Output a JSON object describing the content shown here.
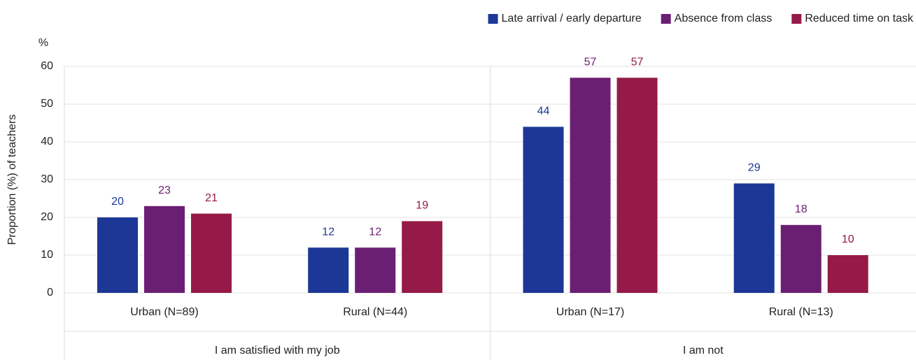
{
  "chart_data": {
    "type": "bar",
    "y_unit": "%",
    "ylabel": "Proportion (%) of teachers",
    "groups": [
      {
        "name": "I am satisfied with my job",
        "categories": [
          "Urban (N=89)",
          "Rural (N=44)"
        ]
      },
      {
        "name": "I am not",
        "categories": [
          "Urban (N=17)",
          "Rural (N=13)"
        ]
      }
    ],
    "series": [
      {
        "name": "Late arrival / early departure",
        "color": "#1c3795",
        "values": [
          20,
          12,
          44,
          29
        ]
      },
      {
        "name": "Absence from class",
        "color": "#6b1f73",
        "values": [
          23,
          12,
          57,
          18
        ]
      },
      {
        "name": "Reduced time on task",
        "color": "#951a47",
        "values": [
          21,
          19,
          57,
          10
        ]
      }
    ],
    "ylim": [
      0,
      60
    ],
    "yticks": [
      0,
      10,
      20,
      30,
      40,
      50,
      60
    ],
    "grid": true,
    "legend": "top-right"
  }
}
